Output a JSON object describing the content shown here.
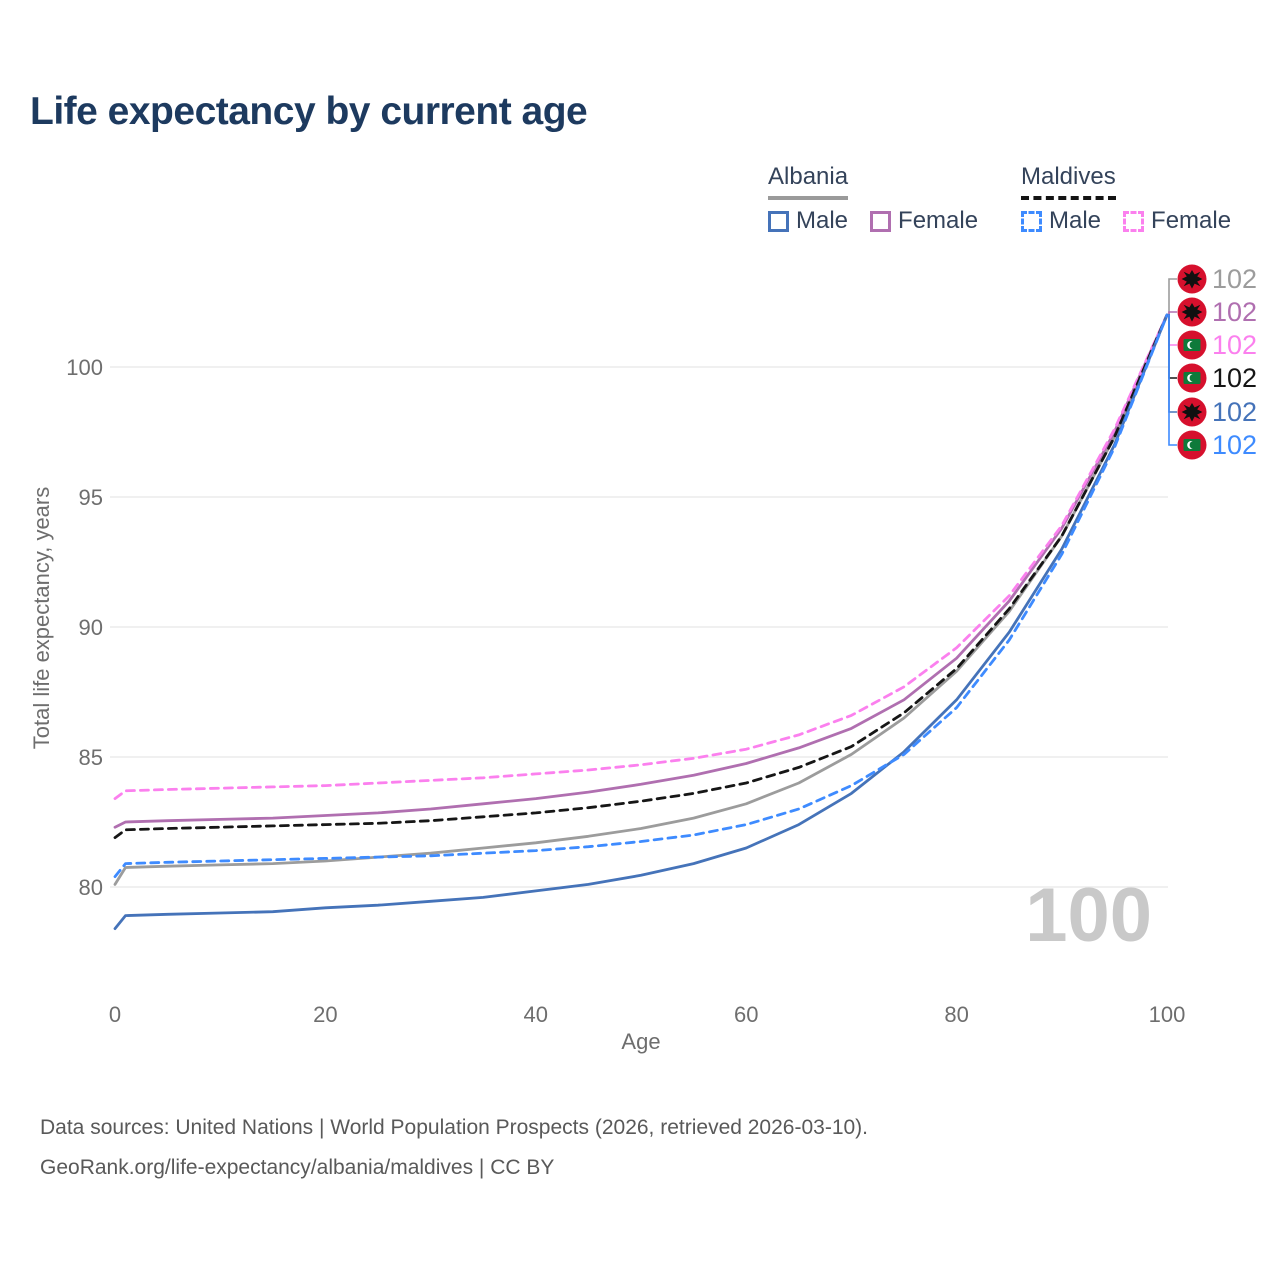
{
  "title": "Life expectancy by current age",
  "legend": {
    "groups": [
      {
        "label": "Albania",
        "line_style": "solid",
        "underline_color": "#9a9a9a",
        "items": [
          {
            "label": "Male",
            "color": "#4573b9",
            "dashed": false
          },
          {
            "label": "Female",
            "color": "#b06fb0",
            "dashed": false
          }
        ]
      },
      {
        "label": "Maldives",
        "line_style": "dashed",
        "underline_color": "#141414",
        "items": [
          {
            "label": "Male",
            "color": "#3e8bff",
            "dashed": true
          },
          {
            "label": "Female",
            "color": "#fb80ee",
            "dashed": true
          }
        ]
      }
    ]
  },
  "chart_data": {
    "type": "line",
    "title": "Life expectancy by current age",
    "xlabel": "Age",
    "ylabel": "Total life expectancy, years",
    "x_ticks": [
      0,
      20,
      40,
      60,
      80,
      100
    ],
    "y_ticks": [
      80,
      85,
      90,
      95,
      100
    ],
    "xlim": [
      0,
      100
    ],
    "ylim": [
      78,
      102.5
    ],
    "grid": "horizontal",
    "age_indicator": "100",
    "x": [
      0,
      1,
      5,
      10,
      15,
      20,
      25,
      30,
      35,
      40,
      45,
      50,
      55,
      60,
      65,
      70,
      75,
      80,
      85,
      90,
      95,
      100
    ],
    "series": [
      {
        "country": "Albania",
        "sex": "Both",
        "color": "#9c9c9c",
        "dashed": false,
        "end_label": "102",
        "flag": "albania",
        "values": [
          80.1,
          80.75,
          80.8,
          80.85,
          80.9,
          81.0,
          81.15,
          81.3,
          81.5,
          81.7,
          81.95,
          82.25,
          82.65,
          83.2,
          84.0,
          85.1,
          86.5,
          88.3,
          90.6,
          93.5,
          97.3,
          102
        ]
      },
      {
        "country": "Albania",
        "sex": "Female",
        "color": "#b06fb0",
        "dashed": false,
        "end_label": "102",
        "flag": "albania",
        "values": [
          82.3,
          82.5,
          82.55,
          82.6,
          82.65,
          82.75,
          82.85,
          83.0,
          83.2,
          83.4,
          83.65,
          83.95,
          84.3,
          84.75,
          85.35,
          86.1,
          87.2,
          88.8,
          91.0,
          93.8,
          97.5,
          102
        ]
      },
      {
        "country": "Maldives",
        "sex": "Female",
        "color": "#fb80ee",
        "dashed": true,
        "end_label": "102",
        "flag": "maldives",
        "values": [
          83.4,
          83.7,
          83.75,
          83.8,
          83.85,
          83.9,
          84.0,
          84.1,
          84.2,
          84.35,
          84.5,
          84.7,
          84.95,
          85.3,
          85.85,
          86.6,
          87.7,
          89.2,
          91.2,
          93.9,
          97.6,
          102
        ]
      },
      {
        "country": "Maldives",
        "sex": "Both",
        "color": "#161616",
        "dashed": true,
        "end_label": "102",
        "flag": "maldives",
        "values": [
          81.9,
          82.2,
          82.25,
          82.3,
          82.35,
          82.4,
          82.45,
          82.55,
          82.7,
          82.85,
          83.05,
          83.3,
          83.6,
          84.0,
          84.6,
          85.4,
          86.7,
          88.4,
          90.7,
          93.5,
          97.3,
          102
        ]
      },
      {
        "country": "Albania",
        "sex": "Male",
        "color": "#4573b9",
        "dashed": false,
        "end_label": "102",
        "flag": "albania",
        "values": [
          78.4,
          78.9,
          78.95,
          79.0,
          79.05,
          79.2,
          79.3,
          79.45,
          79.6,
          79.85,
          80.1,
          80.45,
          80.9,
          81.5,
          82.4,
          83.6,
          85.2,
          87.2,
          89.8,
          93.0,
          97.0,
          102
        ]
      },
      {
        "country": "Maldives",
        "sex": "Male",
        "color": "#3e8bff",
        "dashed": true,
        "end_label": "102",
        "flag": "maldives",
        "values": [
          80.4,
          80.9,
          80.95,
          81.0,
          81.05,
          81.1,
          81.15,
          81.2,
          81.3,
          81.4,
          81.55,
          81.75,
          82.0,
          82.4,
          83.0,
          83.9,
          85.1,
          86.9,
          89.5,
          92.8,
          96.9,
          102
        ]
      }
    ]
  },
  "footer": {
    "line1": "Data sources: United Nations | World Population Prospects (2026, retrieved 2026-03-10).",
    "line2": "GeoRank.org/life-expectancy/albania/maldives | CC BY"
  }
}
